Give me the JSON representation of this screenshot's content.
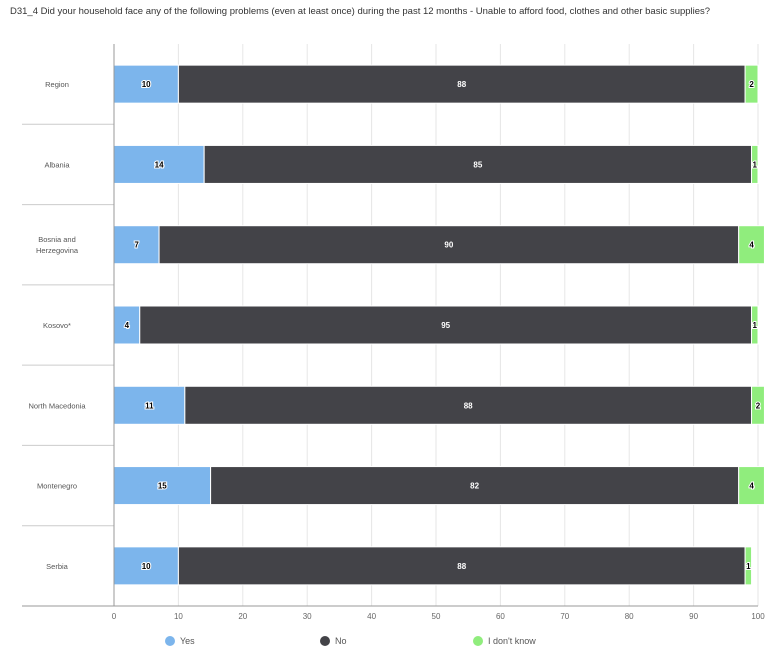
{
  "chart_data": {
    "type": "bar",
    "orientation": "horizontal",
    "stacked": true,
    "title": "D31_4 Did your household face any of the following problems (even at least once) during the past 12 months - Unable to afford food, clothes and other basic supplies?",
    "categories": [
      "Region",
      "Albania",
      "Bosnia and Herzegovina",
      "Kosovo*",
      "North Macedonia",
      "Montenegro",
      "Serbia"
    ],
    "series": [
      {
        "name": "Yes",
        "color": "#7cb5ec",
        "values": [
          10,
          14,
          7,
          4,
          11,
          15,
          10
        ]
      },
      {
        "name": "No",
        "color": "#434348",
        "values": [
          88,
          85,
          90,
          95,
          88,
          82,
          88
        ]
      },
      {
        "name": "I don't know",
        "color": "#90ed7d",
        "values": [
          2,
          1,
          4,
          1,
          2,
          4,
          1
        ]
      }
    ],
    "xlim": [
      0,
      100
    ],
    "xticks": [
      0,
      10,
      20,
      30,
      40,
      50,
      60,
      70,
      80,
      90,
      100
    ],
    "grid": true,
    "legend_position": "bottom"
  }
}
